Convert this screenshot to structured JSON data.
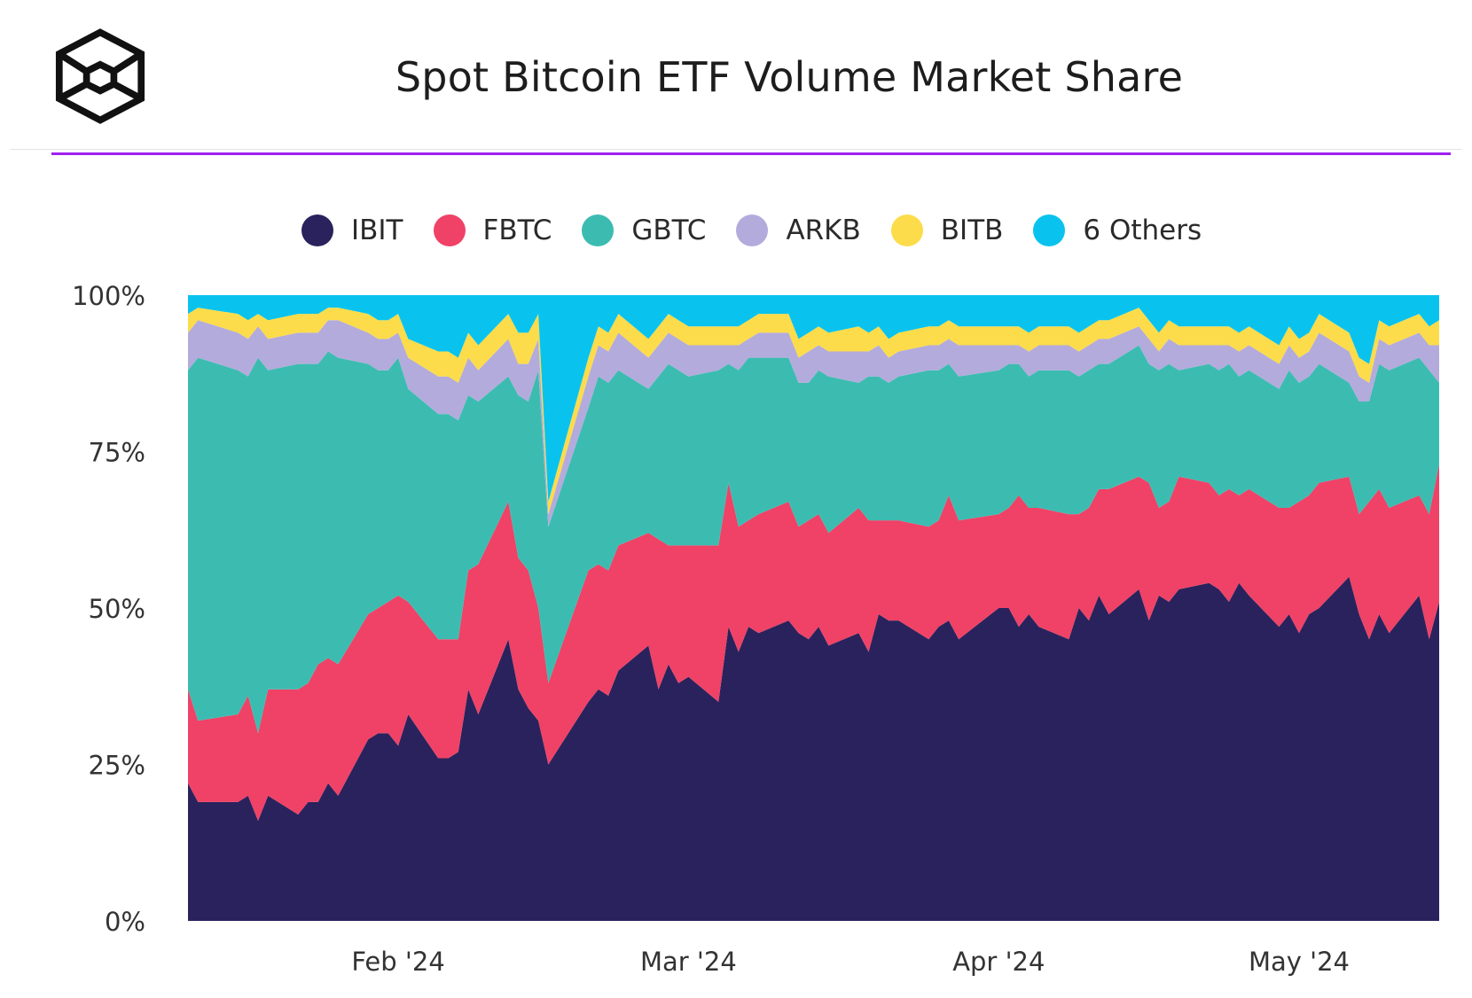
{
  "header": {
    "title": "Spot Bitcoin ETF Volume Market Share",
    "logo_icon": "cube-logo-icon",
    "accent_color": "#a020f0"
  },
  "chart_data": {
    "type": "area",
    "stacked": true,
    "normalized": true,
    "title": "Spot Bitcoin ETF Volume Market Share",
    "xlabel": "",
    "ylabel": "",
    "ylim": [
      0,
      100
    ],
    "y_ticks": [
      "0%",
      "25%",
      "50%",
      "75%",
      "100%"
    ],
    "x_ticks": [
      "Feb '24",
      "Mar '24",
      "Apr '24",
      "May '24"
    ],
    "legend_position": "top",
    "grid": false,
    "x": [
      "2024-01-11",
      "2024-01-12",
      "2024-01-16",
      "2024-01-17",
      "2024-01-18",
      "2024-01-19",
      "2024-01-22",
      "2024-01-23",
      "2024-01-24",
      "2024-01-25",
      "2024-01-26",
      "2024-01-29",
      "2024-01-30",
      "2024-01-31",
      "2024-02-01",
      "2024-02-02",
      "2024-02-05",
      "2024-02-06",
      "2024-02-07",
      "2024-02-08",
      "2024-02-09",
      "2024-02-12",
      "2024-02-13",
      "2024-02-14",
      "2024-02-15",
      "2024-02-16",
      "2024-02-20",
      "2024-02-21",
      "2024-02-22",
      "2024-02-23",
      "2024-02-26",
      "2024-02-27",
      "2024-02-28",
      "2024-02-29",
      "2024-03-01",
      "2024-03-04",
      "2024-03-05",
      "2024-03-06",
      "2024-03-07",
      "2024-03-08",
      "2024-03-11",
      "2024-03-12",
      "2024-03-13",
      "2024-03-14",
      "2024-03-15",
      "2024-03-18",
      "2024-03-19",
      "2024-03-20",
      "2024-03-21",
      "2024-03-22",
      "2024-03-25",
      "2024-03-26",
      "2024-03-27",
      "2024-03-28",
      "2024-04-01",
      "2024-04-02",
      "2024-04-03",
      "2024-04-04",
      "2024-04-05",
      "2024-04-08",
      "2024-04-09",
      "2024-04-10",
      "2024-04-11",
      "2024-04-12",
      "2024-04-15",
      "2024-04-16",
      "2024-04-17",
      "2024-04-18",
      "2024-04-19",
      "2024-04-22",
      "2024-04-23",
      "2024-04-24",
      "2024-04-25",
      "2024-04-26",
      "2024-04-29",
      "2024-04-30",
      "2024-05-01",
      "2024-05-02",
      "2024-05-03",
      "2024-05-06",
      "2024-05-07",
      "2024-05-08",
      "2024-05-09",
      "2024-05-10",
      "2024-05-13",
      "2024-05-14",
      "2024-05-15"
    ],
    "series": [
      {
        "name": "IBIT",
        "color": "#2a225c",
        "values": [
          22,
          19,
          19,
          20,
          16,
          20,
          17,
          19,
          19,
          22,
          20,
          29,
          30,
          30,
          28,
          33,
          26,
          26,
          27,
          37,
          33,
          45,
          37,
          34,
          32,
          25,
          35,
          37,
          36,
          40,
          44,
          37,
          41,
          38,
          39,
          35,
          47,
          43,
          47,
          46,
          48,
          46,
          45,
          47,
          44,
          46,
          43,
          49,
          48,
          48,
          45,
          47,
          48,
          45,
          50,
          50,
          47,
          49,
          47,
          45,
          50,
          48,
          52,
          49,
          53,
          48,
          52,
          51,
          53,
          54,
          53,
          51,
          54,
          52,
          47,
          49,
          46,
          49,
          50,
          55,
          49,
          45,
          49,
          46,
          52,
          45,
          51
        ]
      },
      {
        "name": "FBTC",
        "color": "#ef4266",
        "values": [
          15,
          13,
          14,
          16,
          14,
          17,
          20,
          19,
          22,
          20,
          21,
          20,
          20,
          21,
          24,
          18,
          19,
          19,
          18,
          19,
          24,
          22,
          21,
          22,
          18,
          13,
          21,
          20,
          20,
          20,
          18,
          24,
          19,
          22,
          21,
          25,
          23,
          20,
          17,
          19,
          19,
          17,
          19,
          18,
          18,
          20,
          21,
          15,
          16,
          16,
          18,
          17,
          20,
          19,
          15,
          16,
          21,
          17,
          19,
          20,
          15,
          18,
          17,
          20,
          18,
          22,
          14,
          16,
          18,
          16,
          15,
          18,
          14,
          17,
          19,
          17,
          21,
          19,
          20,
          16,
          16,
          22,
          20,
          20,
          16,
          20,
          22
        ]
      },
      {
        "name": "GBTC",
        "color": "#3cbcb1",
        "values": [
          51,
          58,
          55,
          51,
          60,
          51,
          52,
          51,
          48,
          49,
          49,
          40,
          38,
          37,
          38,
          34,
          36,
          36,
          35,
          28,
          26,
          20,
          26,
          27,
          38,
          25,
          26,
          30,
          30,
          28,
          23,
          26,
          29,
          28,
          27,
          28,
          19,
          25,
          26,
          25,
          23,
          23,
          22,
          23,
          25,
          20,
          23,
          23,
          22,
          23,
          25,
          24,
          21,
          23,
          23,
          23,
          21,
          21,
          22,
          23,
          22,
          22,
          20,
          20,
          21,
          19,
          22,
          22,
          17,
          19,
          20,
          20,
          19,
          19,
          19,
          22,
          19,
          19,
          19,
          15,
          18,
          16,
          20,
          22,
          22,
          23,
          13
        ]
      },
      {
        "name": "ARKB",
        "color": "#b3abdc",
        "values": [
          6,
          6,
          6,
          6,
          5,
          5,
          5,
          5,
          5,
          5,
          6,
          5,
          5,
          5,
          4,
          5,
          6,
          6,
          6,
          6,
          5,
          6,
          5,
          6,
          5,
          2,
          5,
          5,
          5,
          6,
          5,
          5,
          5,
          5,
          5,
          4,
          3,
          4,
          3,
          4,
          4,
          4,
          5,
          4,
          4,
          5,
          4,
          5,
          4,
          4,
          4,
          4,
          4,
          5,
          4,
          3,
          3,
          4,
          4,
          4,
          4,
          4,
          4,
          4,
          3,
          4,
          3,
          4,
          4,
          3,
          4,
          3,
          4,
          4,
          4,
          4,
          4,
          4,
          5,
          5,
          4,
          3,
          4,
          4,
          4,
          4,
          6
        ]
      },
      {
        "name": "BITB",
        "color": "#fcdc4a",
        "values": [
          3,
          2,
          3,
          3,
          2,
          3,
          3,
          3,
          3,
          2,
          2,
          3,
          3,
          3,
          3,
          3,
          4,
          4,
          4,
          4,
          4,
          4,
          5,
          5,
          4,
          2,
          3,
          3,
          3,
          3,
          3,
          3,
          3,
          3,
          3,
          3,
          3,
          3,
          3,
          3,
          3,
          3,
          3,
          3,
          3,
          4,
          3,
          3,
          3,
          3,
          3,
          3,
          3,
          3,
          3,
          3,
          3,
          3,
          3,
          3,
          3,
          3,
          3,
          3,
          3,
          3,
          3,
          3,
          3,
          3,
          3,
          3,
          3,
          3,
          3,
          3,
          3,
          3,
          3,
          3,
          3,
          3,
          3,
          3,
          3,
          3,
          4
        ]
      },
      {
        "name": "6 Others",
        "color": "#09c3ee",
        "values": [
          3,
          2,
          3,
          4,
          3,
          4,
          3,
          3,
          3,
          2,
          2,
          3,
          4,
          4,
          3,
          7,
          9,
          9,
          10,
          6,
          8,
          3,
          6,
          6,
          3,
          33,
          10,
          5,
          6,
          3,
          7,
          5,
          3,
          4,
          5,
          5,
          5,
          5,
          4,
          3,
          3,
          7,
          6,
          5,
          6,
          5,
          6,
          5,
          7,
          6,
          5,
          5,
          4,
          5,
          5,
          5,
          5,
          6,
          5,
          5,
          6,
          5,
          4,
          4,
          2,
          4,
          6,
          4,
          5,
          5,
          5,
          5,
          6,
          5,
          8,
          5,
          7,
          6,
          3,
          6,
          10,
          11,
          4,
          5,
          3,
          5,
          4
        ]
      }
    ]
  }
}
